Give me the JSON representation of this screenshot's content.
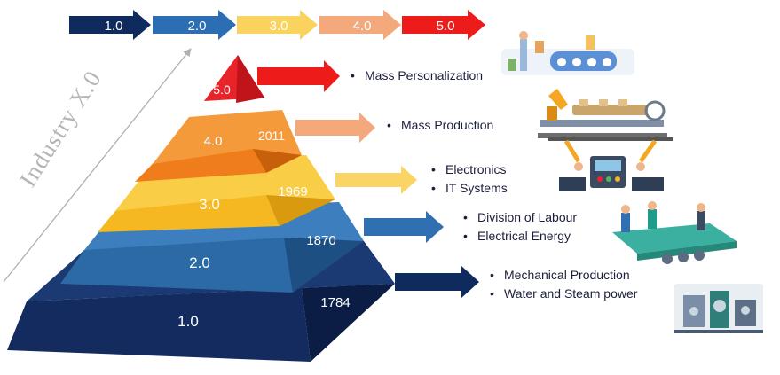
{
  "timeline": [
    {
      "label": "1.0",
      "color": "#0f2a5c"
    },
    {
      "label": "2.0",
      "color": "#2c6eb3"
    },
    {
      "label": "3.0",
      "color": "#f9d35d"
    },
    {
      "label": "4.0",
      "color": "#f4a97c"
    },
    {
      "label": "5.0",
      "color": "#ee1b1b"
    }
  ],
  "side_title": "Industry X.0",
  "levels": [
    {
      "id": "5",
      "version": "5.0",
      "year": "",
      "color": "#e8232a",
      "items": [
        "Mass Personalization"
      ],
      "illustration": "factory-conveyor-icon"
    },
    {
      "id": "4",
      "version": "4.0",
      "year": "2011",
      "color": "#f07d1b",
      "items": [
        "Mass Production"
      ],
      "illustration": "robot-arm-line-icon"
    },
    {
      "id": "3",
      "version": "3.0",
      "year": "1969",
      "color": "#f5b820",
      "items": [
        "Electronics",
        "IT Systems"
      ],
      "illustration": "control-panel-robots-icon"
    },
    {
      "id": "2",
      "version": "2.0",
      "year": "1870",
      "color": "#2b6aa5",
      "items": [
        "Division of Labour",
        "Electrical Energy"
      ],
      "illustration": "assembly-workers-icon"
    },
    {
      "id": "1",
      "version": "1.0",
      "year": "1784",
      "color": "#132b5e",
      "items": [
        "Mechanical Production",
        "Water and Steam power"
      ],
      "illustration": "steam-machinery-icon"
    }
  ]
}
